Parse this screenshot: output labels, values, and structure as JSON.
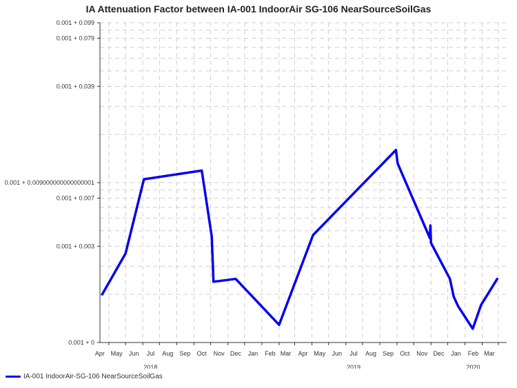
{
  "chart_data": {
    "type": "line",
    "title": "IA Attenuation Factor between IA-001 IndoorAir SG-106 NearSourceSoilGas",
    "y_scale": "log",
    "y_tick_values": [
      0.001,
      0.004,
      0.008,
      0.01,
      0.04,
      0.08,
      0.1
    ],
    "y_tick_labels": [
      "0.001 + 0",
      "0.001 + 0.003",
      "0.001 + 0.007",
      "0.001 + 0.009000000000000001",
      "0.001 + 0.039",
      "0.001 + 0.079",
      "0.001 + 0.099"
    ],
    "ylim": [
      0.001,
      0.1
    ],
    "xlim": [
      "2018-03-16",
      "2020-03-16"
    ],
    "x_tick_labels": [
      "Apr",
      "May",
      "Jun",
      "Jul",
      "Aug",
      "Sep",
      "Oct",
      "Nov",
      "Dec",
      "Jan",
      "Feb",
      "Mar",
      "Apr",
      "May",
      "Jun",
      "Jul",
      "Aug",
      "Sep",
      "Oct",
      "Nov",
      "Dec",
      "Jan",
      "Feb",
      "Mar"
    ],
    "x_tick_dates": [
      "2018-04-01",
      "2018-05-01",
      "2018-06-01",
      "2018-07-01",
      "2018-08-01",
      "2018-09-01",
      "2018-10-01",
      "2018-11-01",
      "2018-12-01",
      "2019-01-01",
      "2019-02-01",
      "2019-03-01",
      "2019-04-01",
      "2019-05-01",
      "2019-06-01",
      "2019-07-01",
      "2019-08-01",
      "2019-09-01",
      "2019-10-01",
      "2019-11-01",
      "2019-12-01",
      "2020-01-01",
      "2020-02-01",
      "2020-03-01"
    ],
    "year_labels": [
      {
        "label": "2018",
        "date": "2018-07-01"
      },
      {
        "label": "2019",
        "date": "2019-07-01"
      },
      {
        "label": "2020",
        "date": "2020-02-01"
      }
    ],
    "grid": true,
    "legend_position": "bottom-left",
    "series": [
      {
        "name": "IA-001 IndoorAir-SG-106 NearSourceSoilGas",
        "color": "#0000ee",
        "x": [
          "2018-03-20",
          "2018-05-01",
          "2018-06-03",
          "2018-09-15",
          "2018-10-03",
          "2018-10-06",
          "2018-11-15",
          "2019-02-01",
          "2019-04-03",
          "2019-08-30",
          "2019-09-02",
          "2019-10-30",
          "2019-10-31",
          "2019-11-01",
          "2019-12-05",
          "2019-12-12",
          "2019-12-20",
          "2020-01-15",
          "2020-01-30",
          "2020-02-28"
        ],
        "y": [
          0.002,
          0.0036,
          0.0105,
          0.0119,
          0.0046,
          0.0024,
          0.0025,
          0.00129,
          0.0047,
          0.016,
          0.0132,
          0.0045,
          0.0054,
          0.0042,
          0.0025,
          0.00193,
          0.00168,
          0.00122,
          0.00172,
          0.0025
        ]
      }
    ]
  }
}
